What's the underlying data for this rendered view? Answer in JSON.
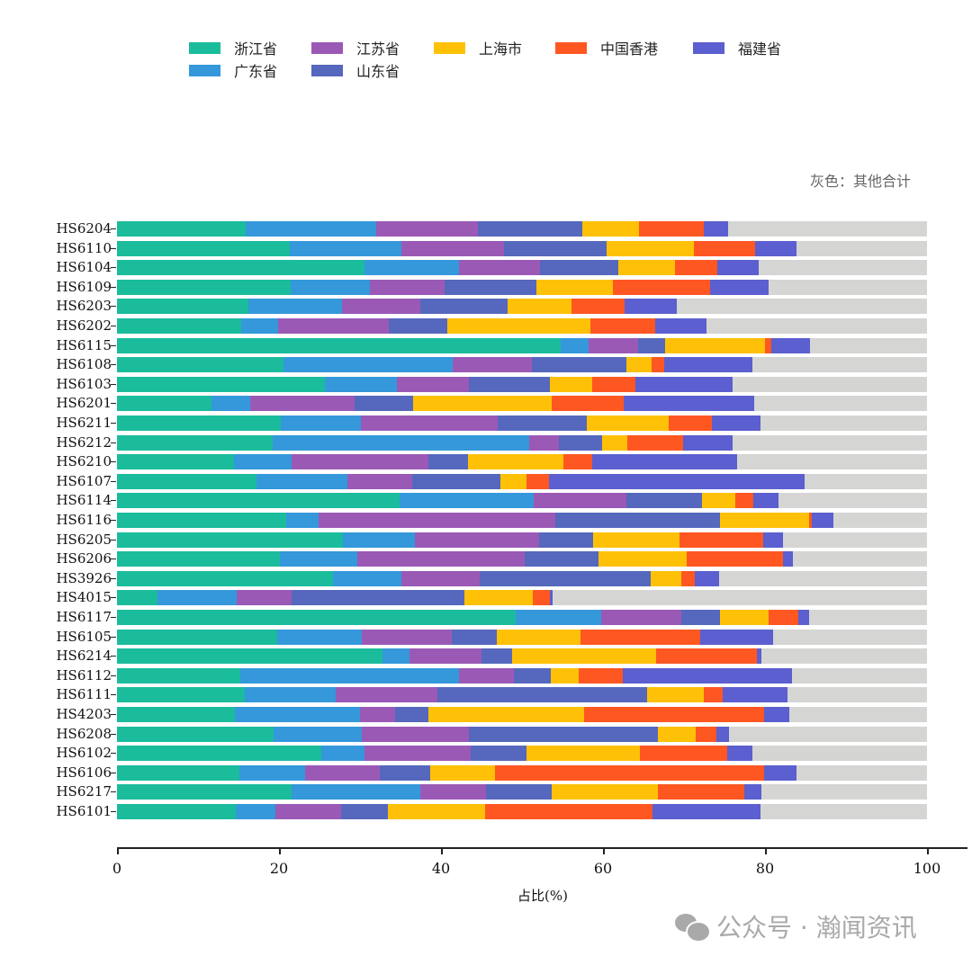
{
  "chart_data": {
    "type": "bar",
    "orientation": "horizontal",
    "stacked": true,
    "title": "",
    "xlabel": "占比(%)",
    "ylabel": "",
    "xlim": [
      0,
      100
    ],
    "xticks": [
      0,
      20,
      40,
      60,
      80,
      100
    ],
    "annotation": "灰色：其他合计",
    "legend_position": "top",
    "categories": [
      "HS6204",
      "HS6110",
      "HS6104",
      "HS6109",
      "HS6203",
      "HS6202",
      "HS6115",
      "HS6108",
      "HS6103",
      "HS6201",
      "HS6211",
      "HS6212",
      "HS6210",
      "HS6107",
      "HS6114",
      "HS6116",
      "HS6205",
      "HS6206",
      "HS3926",
      "HS4015",
      "HS6117",
      "HS6105",
      "HS6214",
      "HS6112",
      "HS6111",
      "HS4203",
      "HS6208",
      "HS6102",
      "HS6106",
      "HS6217",
      "HS6101"
    ],
    "series": [
      {
        "name": "浙江省",
        "color": "#1abc9c",
        "values": [
          15.9,
          21.3,
          30.6,
          21.4,
          16.2,
          15.3,
          54.8,
          20.6,
          25.7,
          11.7,
          20.2,
          19.2,
          14.4,
          17.2,
          34.9,
          20.9,
          27.9,
          20.1,
          26.7,
          5.0,
          49.2,
          19.8,
          32.8,
          15.2,
          15.8,
          14.6,
          19.3,
          25.2,
          15.1,
          21.6,
          14.7
        ]
      },
      {
        "name": "广东省",
        "color": "#3498db",
        "values": [
          16.1,
          13.8,
          11.6,
          9.8,
          11.6,
          4.6,
          3.4,
          20.8,
          8.9,
          4.7,
          9.9,
          31.7,
          7.2,
          11.2,
          16.6,
          4.0,
          8.9,
          9.6,
          8.4,
          9.8,
          10.6,
          10.4,
          3.3,
          27.0,
          11.2,
          15.4,
          10.9,
          5.4,
          8.1,
          15.8,
          4.9
        ]
      },
      {
        "name": "江苏省",
        "color": "#9b59b6",
        "values": [
          12.6,
          12.7,
          10.0,
          9.3,
          9.7,
          13.7,
          6.1,
          9.8,
          8.9,
          12.9,
          16.9,
          3.7,
          16.8,
          8.0,
          11.4,
          29.2,
          15.3,
          20.6,
          9.7,
          6.8,
          9.9,
          11.1,
          8.9,
          6.8,
          12.6,
          4.3,
          13.2,
          13.1,
          9.3,
          8.2,
          8.1
        ]
      },
      {
        "name": "山东省",
        "color": "#5568bd",
        "values": [
          12.8,
          12.7,
          9.7,
          11.3,
          10.7,
          7.2,
          3.4,
          11.7,
          9.9,
          7.3,
          11.0,
          5.3,
          4.9,
          10.9,
          9.3,
          20.3,
          6.7,
          9.1,
          21.1,
          21.3,
          4.8,
          5.6,
          3.8,
          4.6,
          25.9,
          4.1,
          23.4,
          6.9,
          6.2,
          8.1,
          5.7
        ]
      },
      {
        "name": "上海市",
        "color": "#ffc107",
        "values": [
          7.1,
          10.7,
          7.0,
          9.4,
          7.9,
          17.6,
          12.3,
          3.1,
          5.3,
          17.1,
          10.1,
          3.1,
          11.8,
          3.3,
          4.1,
          11.0,
          10.6,
          10.9,
          3.8,
          8.4,
          6.0,
          10.3,
          17.8,
          3.4,
          7.0,
          19.3,
          4.6,
          14.0,
          8.0,
          13.1,
          12.0
        ]
      },
      {
        "name": "中国香港",
        "color": "#ff5722",
        "values": [
          8.0,
          7.6,
          5.2,
          12.0,
          6.6,
          8.1,
          0.8,
          1.6,
          5.3,
          8.9,
          5.3,
          6.9,
          3.6,
          2.7,
          2.3,
          0.4,
          10.4,
          11.9,
          1.6,
          2.2,
          3.6,
          14.8,
          12.4,
          5.4,
          2.3,
          22.2,
          2.6,
          10.7,
          33.2,
          10.6,
          20.7
        ]
      },
      {
        "name": "福建省",
        "color": "#5b5fcf",
        "values": [
          2.9,
          5.1,
          5.1,
          7.3,
          6.4,
          6.3,
          4.8,
          10.8,
          12.0,
          16.1,
          6.1,
          6.1,
          17.9,
          31.6,
          3.1,
          2.6,
          2.4,
          1.2,
          3.0,
          0.3,
          1.4,
          9.0,
          0.6,
          20.9,
          8.0,
          3.1,
          1.6,
          3.1,
          4.0,
          2.2,
          13.4
        ]
      }
    ],
    "other_color": "#d5d5d3"
  },
  "legend": {
    "items": [
      {
        "label": "浙江省",
        "color": "#1abc9c"
      },
      {
        "label": "广东省",
        "color": "#3498db"
      },
      {
        "label": "江苏省",
        "color": "#9b59b6"
      },
      {
        "label": "山东省",
        "color": "#5568bd"
      },
      {
        "label": "上海市",
        "color": "#ffc107"
      },
      {
        "label": "中国香港",
        "color": "#ff5722"
      },
      {
        "label": "福建省",
        "color": "#5b5fcf"
      }
    ]
  },
  "note": "灰色：其他合计",
  "xaxis": {
    "label": "占比(%)",
    "ticks": [
      "0",
      "20",
      "40",
      "60",
      "80",
      "100"
    ]
  },
  "watermark": {
    "text": "公众号 · 瀚闻资讯",
    "icon": "wechat-icon"
  }
}
